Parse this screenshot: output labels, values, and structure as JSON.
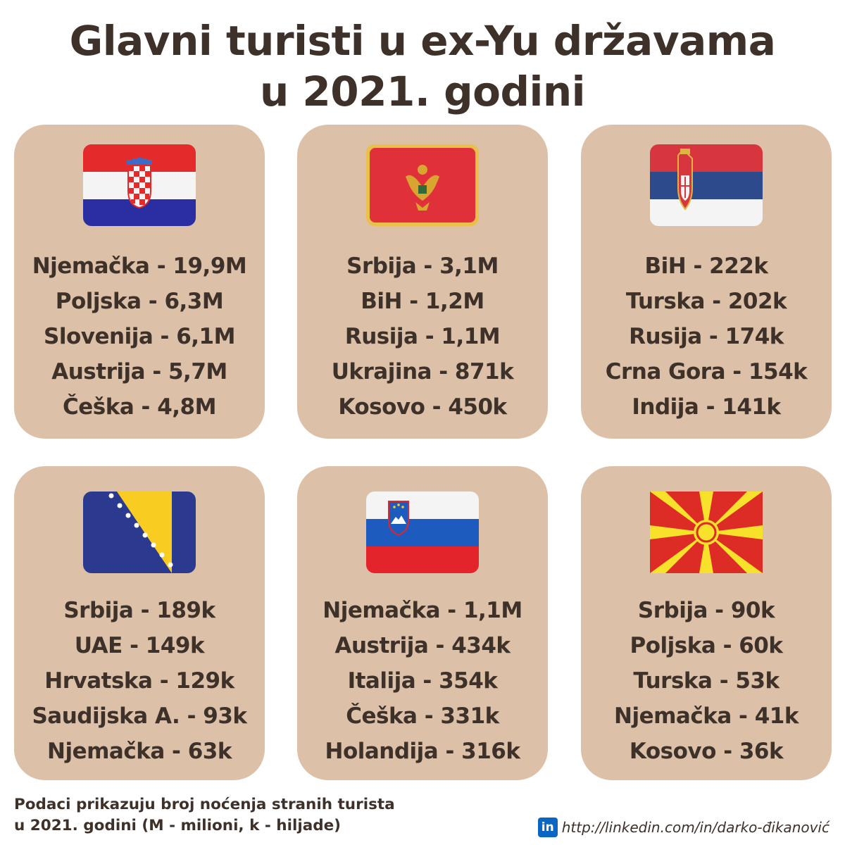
{
  "title": {
    "line1": "Glavni turisti u ex-Yu državama",
    "line2": "u 2021. godini"
  },
  "cards": [
    {
      "country_flag": "croatia-flag",
      "items": [
        "Njemačka - 19,9M",
        "Poljska - 6,3M",
        "Slovenija - 6,1M",
        "Austrija - 5,7M",
        "Češka - 4,8M"
      ]
    },
    {
      "country_flag": "montenegro-flag",
      "items": [
        "Srbija - 3,1M",
        "BiH - 1,2M",
        "Rusija - 1,1M",
        "Ukrajina - 871k",
        "Kosovo - 450k"
      ]
    },
    {
      "country_flag": "serbia-flag",
      "items": [
        "BiH - 222k",
        "Turska - 202k",
        "Rusija - 174k",
        "Crna Gora - 154k",
        "Indija - 141k"
      ]
    },
    {
      "country_flag": "bosnia-flag",
      "items": [
        "Srbija - 189k",
        "UAE - 149k",
        "Hrvatska - 129k",
        "Saudijska A. - 93k",
        "Njemačka - 63k"
      ]
    },
    {
      "country_flag": "slovenia-flag",
      "items": [
        "Njemačka - 1,1M",
        "Austrija - 434k",
        "Italija - 354k",
        "Češka - 331k",
        "Holandija - 316k"
      ]
    },
    {
      "country_flag": "north-macedonia-flag",
      "items": [
        "Srbija - 90k",
        "Poljska - 60k",
        "Turska - 53k",
        "Njemačka - 41k",
        "Kosovo - 36k"
      ]
    }
  ],
  "footnote": {
    "line1": "Podaci prikazuju broj noćenja stranih turista",
    "line2": "u 2021. godini (M - milioni, k - hiljade)"
  },
  "link": {
    "icon_label": "in",
    "url": "http://linkedin.com/in/darko-đikanović"
  },
  "colors": {
    "card_bg": "#dcc1a8",
    "text": "#3d3129",
    "linkedin": "#0a66c2"
  }
}
